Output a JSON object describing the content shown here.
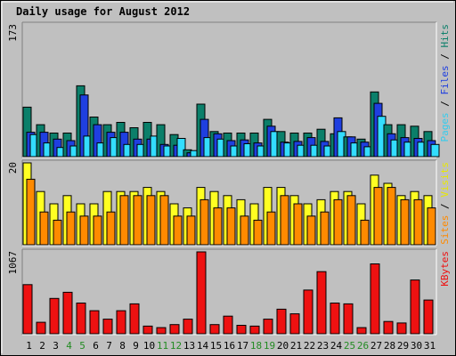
{
  "chart_data": {
    "type": "bar",
    "title": "Daily usage for August 2012",
    "categories": [
      "1",
      "2",
      "3",
      "4",
      "5",
      "6",
      "7",
      "8",
      "9",
      "10",
      "11",
      "12",
      "13",
      "14",
      "15",
      "16",
      "17",
      "18",
      "19",
      "20",
      "21",
      "22",
      "23",
      "24",
      "25",
      "26",
      "27",
      "28",
      "29",
      "30",
      "31"
    ],
    "weekend_days": [
      4,
      5,
      11,
      12,
      18,
      19,
      25,
      26
    ],
    "colors": {
      "background": "#c0c0c0",
      "plot": "#c0c0c0",
      "title": "#0000cc",
      "tick": "#000000",
      "weekend_tick": "#228b22",
      "hits": "#0b7f6a",
      "files": "#1f3fe0",
      "pages": "#33ddff",
      "visits": "#ffff22",
      "sites": "#ff8a00",
      "kbytes": "#ee1111"
    },
    "panels": [
      {
        "name": "hits-files-pages",
        "ymax": 173,
        "ymax_label": "173",
        "right_label": [
          {
            "text": "Pages",
            "color": "#33ccee"
          },
          {
            "text": " / ",
            "color": "#000000"
          },
          {
            "text": "Files",
            "color": "#1f3fe0"
          },
          {
            "text": " / ",
            "color": "#000000"
          },
          {
            "text": "Hits",
            "color": "#0b7f6a"
          }
        ],
        "series": [
          {
            "name": "Hits",
            "values": [
              65,
              42,
              31,
              31,
              93,
              52,
              42,
              45,
              38,
              45,
              42,
              29,
              9,
              69,
              33,
              31,
              31,
              31,
              49,
              33,
              31,
              31,
              36,
              30,
              26,
              23,
              85,
              42,
              42,
              40,
              33
            ]
          },
          {
            "name": "Files",
            "values": [
              32,
              32,
              23,
              21,
              81,
              42,
              32,
              32,
              23,
              23,
              16,
              15,
              5,
              49,
              30,
              21,
              22,
              18,
              40,
              19,
              20,
              25,
              20,
              51,
              26,
              19,
              70,
              30,
              25,
              24,
              21
            ]
          },
          {
            "name": "Pages",
            "values": [
              29,
              18,
              12,
              14,
              27,
              18,
              25,
              16,
              16,
              27,
              14,
              24,
              8,
              25,
              23,
              14,
              17,
              14,
              33,
              18,
              15,
              15,
              14,
              33,
              18,
              13,
              53,
              22,
              19,
              19,
              16
            ]
          }
        ]
      },
      {
        "name": "visits-sites",
        "ymax": 20,
        "ymax_label": "20",
        "right_label": [
          {
            "text": "Sites",
            "color": "#ff8a00"
          },
          {
            "text": " / ",
            "color": "#000000"
          },
          {
            "text": "Visits",
            "color": "#e8e800"
          }
        ],
        "series": [
          {
            "name": "Visits",
            "values": [
              20,
              13,
              10,
              12,
              10,
              10,
              13,
              13,
              13,
              14,
              13,
              10,
              9,
              14,
              13,
              12,
              11,
              10,
              14,
              14,
              12,
              10,
              11,
              13,
              13,
              10,
              17,
              15,
              12,
              13,
              12
            ]
          },
          {
            "name": "Sites",
            "values": [
              16,
              8,
              6,
              8,
              7,
              7,
              8,
              12,
              12,
              12,
              12,
              7,
              7,
              11,
              9,
              9,
              7,
              6,
              8,
              12,
              10,
              7,
              8,
              11,
              12,
              6,
              14,
              14,
              11,
              11,
              9
            ]
          }
        ]
      },
      {
        "name": "kbytes",
        "ymax": 1067,
        "ymax_label": "1067",
        "right_label": [
          {
            "text": "KBytes",
            "color": "#ee1111"
          }
        ],
        "series": [
          {
            "name": "KBytes",
            "values": [
              640,
              150,
              460,
              540,
              400,
              300,
              190,
              300,
              390,
              100,
              80,
              120,
              190,
              1067,
              120,
              230,
              110,
              100,
              190,
              320,
              260,
              570,
              810,
              400,
              390,
              80,
              910,
              160,
              140,
              700,
              440
            ]
          }
        ]
      }
    ]
  }
}
